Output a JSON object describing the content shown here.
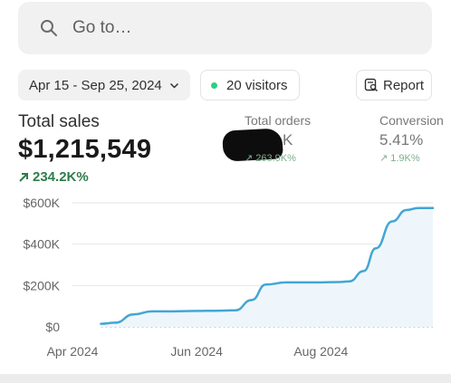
{
  "search": {
    "placeholder": "Go to…"
  },
  "filters": {
    "date_range": "Apr 15 - Sep 25, 2024",
    "visitors": "20 visitors",
    "report": "Report"
  },
  "metrics": {
    "total_sales": {
      "label": "Total sales",
      "value": "$1,215,549",
      "delta": "234.2K%"
    },
    "total_orders": {
      "label": "Total orders",
      "value_visible": "K",
      "delta": "263.9K%"
    },
    "conversion": {
      "label": "Conversion",
      "value": "5.41%",
      "delta": "1.9K%"
    }
  },
  "colors": {
    "accent_line": "#43a6d4",
    "positive": "#2e7d4a",
    "live_dot": "#2fcf83"
  },
  "chart_data": {
    "type": "line",
    "x": [
      "2024-04-15",
      "2024-04-22",
      "2024-05-01",
      "2024-05-10",
      "2024-05-20",
      "2024-06-01",
      "2024-06-10",
      "2024-06-20",
      "2024-06-28",
      "2024-07-05",
      "2024-07-15",
      "2024-07-25",
      "2024-08-01",
      "2024-08-10",
      "2024-08-15",
      "2024-08-22",
      "2024-08-28",
      "2024-09-05",
      "2024-09-12",
      "2024-09-18",
      "2024-09-25"
    ],
    "series": [
      {
        "values": [
          15000,
          20000,
          60000,
          75000,
          75000,
          77000,
          78000,
          80000,
          130000,
          205000,
          215000,
          215000,
          215000,
          217000,
          220000,
          270000,
          380000,
          510000,
          565000,
          575000,
          575000
        ]
      },
      {
        "values": [
          0,
          0,
          0,
          0,
          0,
          0,
          0,
          0,
          0,
          0,
          0,
          0,
          0,
          0,
          0,
          0,
          0,
          0,
          0,
          0,
          0
        ]
      }
    ],
    "y_ticks": [
      "$0",
      "$200K",
      "$400K",
      "$600K"
    ],
    "x_ticks": [
      "Apr 2024",
      "Jun 2024",
      "Aug 2024"
    ],
    "ylim": [
      0,
      600000
    ],
    "grid": true
  }
}
